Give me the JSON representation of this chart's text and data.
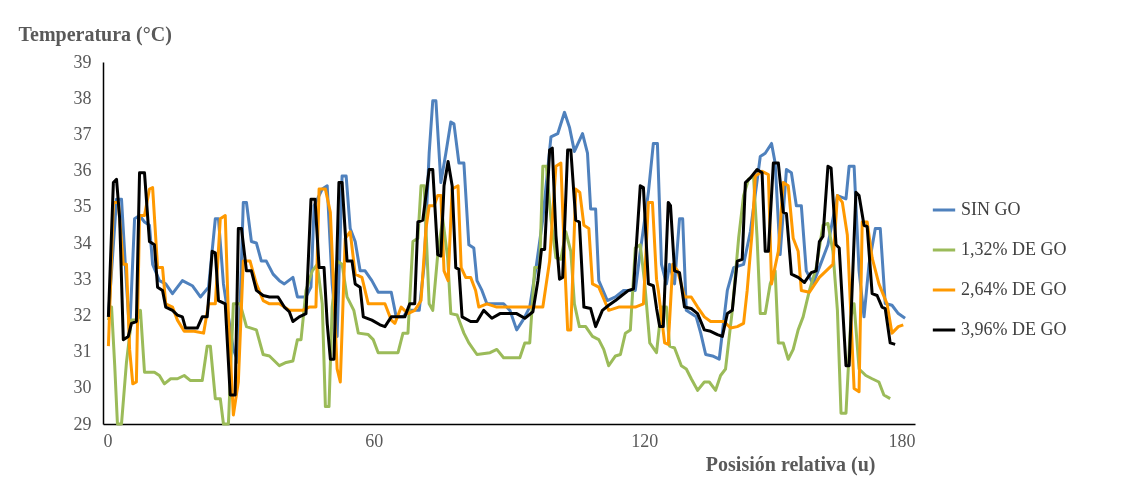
{
  "chart_data": {
    "type": "line",
    "xlabel": "Posisión relativa (u)",
    "ylabel": "Temperatura (°C)",
    "xlim": [
      0,
      180
    ],
    "xticks": [
      0,
      60,
      120,
      180
    ],
    "ylim": [
      29,
      39
    ],
    "yticks": [
      29,
      30,
      31,
      32,
      33,
      34,
      35,
      36,
      37,
      38,
      39
    ],
    "grid": false,
    "legend": "right",
    "marker": "none",
    "line_style": "solid",
    "series": [
      {
        "name": "SIN GO",
        "color": "#4f81bd",
        "x": [
          1.2,
          3.0,
          4.1,
          5.2,
          5.9,
          7.0,
          8.1,
          9.2,
          10.3,
          11.0,
          12.5,
          13.9,
          15.4,
          17.6,
          19.8,
          21.6,
          23.4,
          24.9,
          25.6,
          26.7,
          28.9,
          30.0,
          31.1,
          31.8,
          32.9,
          34.0,
          35.1,
          36.2,
          37.7,
          39.1,
          40.2,
          42.1,
          43.1,
          45.0,
          46.1,
          46.8,
          48.6,
          49.7,
          50.8,
          51.9,
          53.0,
          53.9,
          54.8,
          55.9,
          57.0,
          58.1,
          59.6,
          61.0,
          63.9,
          65.0,
          66.5,
          67.6,
          70.1,
          71.2,
          72.3,
          73.1,
          73.8,
          74.9,
          76.0,
          77.1,
          77.8,
          78.9,
          80.0,
          81.1,
          82.2,
          82.9,
          84.0,
          85.1,
          87.3,
          88.8,
          90.2,
          91.7,
          93.1,
          94.6,
          96.1,
          97.5,
          99.3,
          100.8,
          102.3,
          103.4,
          104.5,
          106.3,
          107.4,
          108.1,
          109.2,
          109.9,
          111.8,
          113.6,
          115.4,
          116.5,
          118.0,
          119.1,
          120.1,
          120.9,
          122.0,
          122.9,
          123.8,
          124.9,
          125.6,
          126.7,
          127.8,
          128.5,
          129.3,
          130.4,
          131.5,
          132.5,
          133.6,
          135.1,
          136.6,
          138.4,
          139.8,
          142.0,
          143.5,
          145.7,
          146.8,
          148.2,
          149.0,
          150.1,
          151.5,
          152.6,
          153.7,
          154.8,
          155.9,
          157.4,
          159.6,
          160.7,
          162.8,
          164.7,
          165.4,
          166.5,
          167.6,
          168.7,
          169.8,
          171.2,
          172.3,
          173.4,
          174.9,
          176.3,
          177.8
        ],
        "values": [
          31.96,
          35.21,
          35.21,
          32.87,
          31.51,
          34.67,
          34.76,
          34.58,
          34.49,
          33.41,
          32.96,
          32.87,
          32.6,
          32.96,
          32.82,
          32.51,
          32.78,
          34.67,
          34.67,
          32.87,
          31.06,
          30.7,
          35.12,
          35.12,
          34.04,
          34.0,
          33.5,
          33.5,
          33.14,
          32.96,
          32.87,
          33.05,
          32.51,
          32.51,
          32.78,
          35.03,
          35.49,
          35.58,
          32.87,
          31.42,
          35.85,
          35.85,
          34.4,
          34.04,
          33.23,
          33.23,
          32.96,
          32.64,
          32.64,
          31.96,
          31.96,
          32.14,
          32.14,
          33.41,
          36.48,
          37.93,
          37.93,
          35.67,
          36.48,
          37.34,
          37.29,
          36.21,
          36.21,
          33.95,
          33.86,
          32.96,
          32.69,
          32.32,
          32.32,
          32.32,
          32.14,
          31.6,
          31.87,
          32.23,
          33.41,
          34.67,
          36.93,
          37.02,
          37.61,
          37.2,
          36.53,
          37.02,
          36.48,
          34.94,
          34.94,
          32.96,
          32.41,
          32.51,
          32.69,
          32.69,
          32.69,
          33.77,
          34.67,
          35.4,
          36.75,
          36.75,
          33.41,
          32.87,
          33.41,
          32.87,
          34.67,
          34.67,
          32.14,
          32.05,
          31.96,
          31.51,
          30.92,
          30.88,
          30.79,
          32.69,
          33.32,
          33.41,
          34.31,
          36.39,
          36.48,
          36.75,
          36.21,
          33.68,
          36.03,
          35.94,
          35.03,
          35.03,
          33.23,
          32.87,
          33.59,
          33.95,
          35.31,
          35.22,
          36.12,
          36.12,
          33.23,
          31.96,
          33.41,
          34.4,
          34.4,
          32.33,
          32.28,
          32.05,
          31.92
        ]
      },
      {
        "name": "1,32% DE GO",
        "color": "#9bbb59",
        "x": [
          1.2,
          1.9,
          2.6,
          3.2,
          4.1,
          5.2,
          6.3,
          7.6,
          8.3,
          9.2,
          11.4,
          12.5,
          13.6,
          15.0,
          16.5,
          18.0,
          19.4,
          22.0,
          23.1,
          23.8,
          24.9,
          26.0,
          26.7,
          27.8,
          28.9,
          30.4,
          31.8,
          34.0,
          35.5,
          36.9,
          39.1,
          40.6,
          42.1,
          43.1,
          43.9,
          45.0,
          46.4,
          47.5,
          48.6,
          49.3,
          50.1,
          50.8,
          51.9,
          53.0,
          54.1,
          55.6,
          56.6,
          58.8,
          59.9,
          61.0,
          65.4,
          66.5,
          67.6,
          68.7,
          69.8,
          70.5,
          71.2,
          72.3,
          73.1,
          74.2,
          75.3,
          76.4,
          77.1,
          78.5,
          80.0,
          81.1,
          82.9,
          85.8,
          87.3,
          88.8,
          92.4,
          93.5,
          94.6,
          95.7,
          96.8,
          97.5,
          98.3,
          99.3,
          100.4,
          101.5,
          102.6,
          103.7,
          104.5,
          105.6,
          107.0,
          108.5,
          109.9,
          111.0,
          112.1,
          113.6,
          114.7,
          115.8,
          116.9,
          118.0,
          119.1,
          120.1,
          121.2,
          122.7,
          123.8,
          124.9,
          125.6,
          126.7,
          128.2,
          129.3,
          130.4,
          131.8,
          133.3,
          134.4,
          135.8,
          136.9,
          138.0,
          139.5,
          140.9,
          142.0,
          143.1,
          144.2,
          145.0,
          145.7,
          146.8,
          147.9,
          149.0,
          149.7,
          150.8,
          151.9,
          153.0,
          154.1,
          155.2,
          156.6,
          158.1,
          159.6,
          160.7,
          161.8,
          162.8,
          163.6,
          164.7,
          165.8,
          166.5,
          167.6,
          169.1,
          170.5,
          172.0,
          173.1,
          174.5
        ],
        "values": [
          31.87,
          32.23,
          30.61,
          29.0,
          29.0,
          30.7,
          31.87,
          31.87,
          32.14,
          30.43,
          30.43,
          30.34,
          30.11,
          30.25,
          30.25,
          30.34,
          30.2,
          30.2,
          31.15,
          31.15,
          29.7,
          29.7,
          29.0,
          29.0,
          32.32,
          32.32,
          31.69,
          31.6,
          30.92,
          30.88,
          30.61,
          30.7,
          30.74,
          31.33,
          31.33,
          32.69,
          33.23,
          33.41,
          32.32,
          29.48,
          29.48,
          32.23,
          33.5,
          33.41,
          32.51,
          32.14,
          31.51,
          31.47,
          31.33,
          30.97,
          30.97,
          31.51,
          31.51,
          34.04,
          34.13,
          35.58,
          35.58,
          32.32,
          32.14,
          33.68,
          34.67,
          33.59,
          32.05,
          32.01,
          31.51,
          31.24,
          30.92,
          30.97,
          31.06,
          30.83,
          30.83,
          31.24,
          31.24,
          33.32,
          33.32,
          36.12,
          36.12,
          34.67,
          33.59,
          33.55,
          34.31,
          33.77,
          32.32,
          31.69,
          31.69,
          31.42,
          31.33,
          31.06,
          30.61,
          30.88,
          30.92,
          31.51,
          31.6,
          33.86,
          33.95,
          32.87,
          31.24,
          30.97,
          32.23,
          32.23,
          31.15,
          31.1,
          30.61,
          30.52,
          30.25,
          29.93,
          30.16,
          30.16,
          29.93,
          30.34,
          30.52,
          32.14,
          34.13,
          35.31,
          35.76,
          35.85,
          34.13,
          32.05,
          32.05,
          32.87,
          33.23,
          31.24,
          31.24,
          30.79,
          31.06,
          31.6,
          31.96,
          32.69,
          33.32,
          34.49,
          34.54,
          33.77,
          32.14,
          29.3,
          29.3,
          31.96,
          32.32,
          30.52,
          30.34,
          30.25,
          30.16,
          29.8,
          29.7
        ]
      },
      {
        "name": "2,64% DE GO",
        "color": "#ff9900",
        "x": [
          1.2,
          2.3,
          3.4,
          4.5,
          5.2,
          5.9,
          6.6,
          7.4,
          8.1,
          9.2,
          10.3,
          11.0,
          12.1,
          13.2,
          13.9,
          15.4,
          16.5,
          18.0,
          20.2,
          22.3,
          23.4,
          24.9,
          26.0,
          27.1,
          27.8,
          28.9,
          30.0,
          31.1,
          32.6,
          34.0,
          35.5,
          36.9,
          39.1,
          41.3,
          44.2,
          45.7,
          47.2,
          47.9,
          49.3,
          50.4,
          51.9,
          52.6,
          53.7,
          54.8,
          55.9,
          57.4,
          58.8,
          61.4,
          62.5,
          63.9,
          64.7,
          66.1,
          67.6,
          69.1,
          70.5,
          71.6,
          72.3,
          73.4,
          74.2,
          74.9,
          75.6,
          76.5,
          77.4,
          78.7,
          79.4,
          80.4,
          81.5,
          82.6,
          83.3,
          85.1,
          87.3,
          93.1,
          97.5,
          99.0,
          100.4,
          101.5,
          102.3,
          103.0,
          103.7,
          104.8,
          105.7,
          106.6,
          107.7,
          108.5,
          109.9,
          112.1,
          114.3,
          118.0,
          119.8,
          120.9,
          121.8,
          122.7,
          123.1,
          124.5,
          125.3,
          126.3,
          127.4,
          128.9,
          130.4,
          131.8,
          133.3,
          134.7,
          137.7,
          139.1,
          140.6,
          142.0,
          142.8,
          143.9,
          144.6,
          146.1,
          147.5,
          148.2,
          149.7,
          150.8,
          151.9,
          153.0,
          154.1,
          154.8,
          156.6,
          158.8,
          160.3,
          161.8,
          162.8,
          163.9,
          165.0,
          166.5,
          167.6,
          168.3,
          169.4,
          170.5,
          172.0,
          173.8,
          174.9,
          176.3,
          177.4
        ],
        "values": [
          31.15,
          35.12,
          35.12,
          33.41,
          33.41,
          31.06,
          30.11,
          30.16,
          34.76,
          34.76,
          35.49,
          35.53,
          33.32,
          33.32,
          32.32,
          32.23,
          31.87,
          31.56,
          31.56,
          31.51,
          32.32,
          32.32,
          34.67,
          34.76,
          31.96,
          29.25,
          30.16,
          33.5,
          33.5,
          32.87,
          32.41,
          32.32,
          32.32,
          32.14,
          32.14,
          32.23,
          32.23,
          35.49,
          35.49,
          34.85,
          30.52,
          30.16,
          34.13,
          34.31,
          33.14,
          33.05,
          32.32,
          32.32,
          32.32,
          31.87,
          31.78,
          32.23,
          32.05,
          32.14,
          32.41,
          34.4,
          35.03,
          35.03,
          35.31,
          35.31,
          33.23,
          32.96,
          35.49,
          35.58,
          33.32,
          33.05,
          33.05,
          32.69,
          32.23,
          32.32,
          32.23,
          32.23,
          32.23,
          33.5,
          36.12,
          36.21,
          33.59,
          31.6,
          31.6,
          35.49,
          35.4,
          34.49,
          34.4,
          32.87,
          32.78,
          32.14,
          32.23,
          32.23,
          32.32,
          35.12,
          35.12,
          33.0,
          32.69,
          31.24,
          31.2,
          33.41,
          33.23,
          32.51,
          32.51,
          32.23,
          31.96,
          31.83,
          31.83,
          31.65,
          31.69,
          31.78,
          32.69,
          34.31,
          35.85,
          35.98,
          35.89,
          32.87,
          33.77,
          35.67,
          35.58,
          34.13,
          33.77,
          32.69,
          32.64,
          33.05,
          33.23,
          33.41,
          35.31,
          35.12,
          34.22,
          29.98,
          29.89,
          34.58,
          34.58,
          33.59,
          32.87,
          32.32,
          31.51,
          31.69,
          31.74
        ]
      },
      {
        "name": "3,96% DE GO",
        "color": "#000000",
        "x": [
          1.2,
          2.3,
          3.0,
          3.7,
          4.5,
          5.6,
          6.3,
          7.4,
          8.1,
          9.2,
          10.3,
          11.4,
          12.1,
          13.2,
          13.9,
          15.4,
          16.5,
          17.6,
          18.3,
          20.9,
          22.0,
          23.1,
          24.2,
          24.9,
          25.6,
          27.1,
          28.2,
          29.3,
          30.0,
          30.7,
          31.8,
          32.9,
          34.0,
          35.5,
          36.9,
          38.8,
          40.2,
          41.3,
          42.1,
          43.5,
          45.0,
          46.1,
          47.0,
          47.9,
          49.0,
          49.7,
          50.4,
          51.2,
          52.3,
          53.0,
          54.1,
          55.2,
          55.9,
          57.0,
          57.7,
          59.6,
          61.4,
          62.5,
          63.9,
          66.9,
          68.0,
          69.1,
          69.8,
          70.9,
          72.3,
          73.1,
          74.2,
          74.9,
          75.6,
          76.5,
          77.4,
          78.2,
          78.9,
          79.6,
          81.5,
          82.9,
          84.4,
          86.2,
          88.0,
          91.7,
          93.5,
          95.3,
          96.4,
          97.2,
          97.9,
          99.0,
          99.6,
          100.4,
          101.2,
          101.9,
          103.0,
          103.7,
          104.8,
          105.6,
          106.6,
          108.1,
          109.2,
          110.7,
          112.1,
          113.6,
          115.0,
          116.5,
          117.6,
          119.1,
          119.8,
          120.9,
          122.0,
          122.7,
          123.4,
          124.2,
          125.3,
          125.8,
          126.7,
          127.8,
          128.9,
          130.4,
          131.8,
          133.3,
          134.7,
          136.2,
          137.3,
          138.4,
          139.5,
          140.6,
          141.7,
          142.4,
          143.5,
          145.0,
          146.1,
          146.8,
          147.5,
          148.6,
          149.7,
          150.8,
          151.5,
          152.6,
          154.1,
          155.5,
          157.0,
          158.1,
          158.8,
          159.6,
          160.7,
          161.4,
          162.5,
          163.2,
          164.7,
          165.4,
          166.9,
          167.6,
          168.7,
          169.4,
          170.5,
          171.6,
          172.7,
          173.4,
          174.5,
          175.6
        ],
        "values": [
          31.96,
          35.67,
          35.76,
          34.67,
          31.33,
          31.42,
          31.78,
          31.83,
          35.94,
          35.94,
          34.04,
          33.95,
          32.78,
          32.69,
          32.23,
          32.14,
          32.01,
          31.96,
          31.65,
          31.65,
          31.96,
          31.96,
          33.77,
          33.73,
          32.41,
          32.32,
          29.8,
          29.8,
          34.4,
          34.4,
          33.23,
          33.23,
          32.69,
          32.55,
          32.51,
          32.51,
          32.23,
          32.1,
          31.83,
          31.96,
          32.05,
          35.21,
          35.21,
          33.32,
          33.32,
          31.78,
          30.79,
          30.79,
          35.67,
          35.67,
          33.5,
          33.5,
          32.87,
          32.78,
          31.96,
          31.87,
          31.74,
          31.69,
          31.96,
          31.96,
          32.32,
          32.32,
          34.58,
          34.63,
          36.03,
          36.03,
          33.68,
          33.64,
          35.58,
          36.25,
          35.58,
          33.32,
          33.27,
          31.96,
          31.83,
          31.83,
          32.14,
          31.92,
          32.05,
          32.05,
          31.92,
          32.1,
          32.96,
          33.82,
          33.82,
          36.57,
          36.62,
          34.22,
          33.0,
          33.05,
          36.57,
          36.57,
          34.63,
          34.58,
          32.23,
          32.19,
          31.69,
          32.14,
          32.28,
          32.41,
          32.55,
          32.69,
          32.73,
          35.58,
          35.53,
          32.87,
          32.82,
          32.2,
          31.69,
          31.69,
          35.12,
          35.03,
          33.23,
          33.18,
          32.23,
          32.19,
          32.05,
          31.6,
          31.56,
          31.47,
          31.42,
          32.05,
          32.14,
          33.5,
          33.55,
          35.67,
          35.8,
          36.03,
          35.94,
          33.77,
          33.77,
          36.21,
          36.21,
          34.85,
          34.81,
          33.14,
          33.05,
          32.91,
          33.18,
          33.23,
          34.04,
          34.18,
          36.12,
          36.07,
          33.95,
          33.86,
          30.61,
          30.61,
          35.4,
          35.31,
          34.49,
          34.45,
          32.6,
          32.55,
          32.23,
          32.19,
          31.24,
          31.2
        ]
      }
    ]
  }
}
